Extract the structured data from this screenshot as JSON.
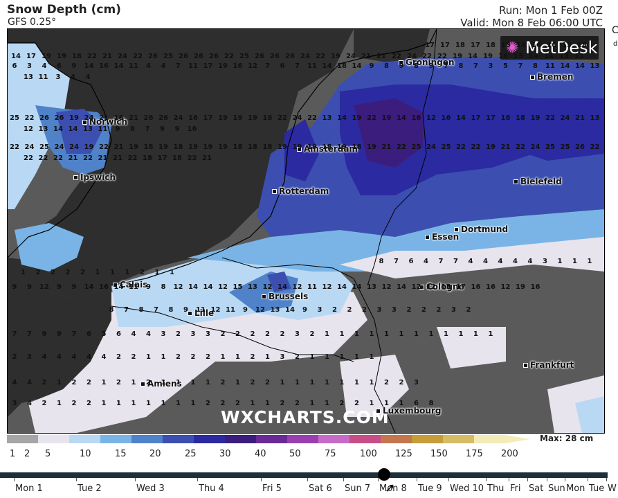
{
  "header": {
    "title": "Snow Depth (cm)",
    "model": "GFS 0.25°",
    "run": "Run: Mon 1 Feb 00Z",
    "valid": "Valid: Mon 8 Feb 06:00 UTC",
    "edge_mark": "C",
    "edge_mark2": "d"
  },
  "brand": {
    "name": "MetDesk",
    "watermark": "WXCHARTS.COM"
  },
  "cities": [
    {
      "name": "Groningen"
    },
    {
      "name": "Bremen"
    },
    {
      "name": "Norwich"
    },
    {
      "name": "Amsterdam"
    },
    {
      "name": "Ipswich"
    },
    {
      "name": "Rotterdam"
    },
    {
      "name": "Bielefeld"
    },
    {
      "name": "Dortmund"
    },
    {
      "name": "Essen"
    },
    {
      "name": "Calais"
    },
    {
      "name": "Brussels"
    },
    {
      "name": "Cologne"
    },
    {
      "name": "Lille"
    },
    {
      "name": "Frankfurt"
    },
    {
      "name": "Amiens"
    },
    {
      "name": "Luxembourg"
    }
  ],
  "grid_values": [
    [
      "17",
      "17",
      "18",
      "17",
      "18",
      "15",
      "14",
      "16",
      "16",
      "15",
      "18",
      "14",
      "17",
      "19",
      "19",
      "18",
      "22",
      "21",
      "24",
      "22",
      "26",
      "25",
      "26",
      "26",
      "26",
      "22",
      "25",
      "26",
      "26",
      "26",
      "24",
      "22",
      "19",
      "24",
      "21",
      "21",
      "22",
      "24",
      "22",
      "22",
      "19",
      "14",
      "19",
      "16",
      "13",
      "14",
      "14",
      "13",
      "11"
    ],
    [
      "6",
      "3",
      "4",
      "6",
      "9",
      "14",
      "16",
      "14",
      "11",
      "4",
      "4",
      "7",
      "11",
      "17",
      "19",
      "16",
      "12",
      "7",
      "6",
      "7",
      "11",
      "14",
      "18",
      "14",
      "9",
      "8",
      "9",
      "8",
      "9",
      "7",
      "8",
      "7",
      "3",
      "5",
      "7",
      "8",
      "11",
      "14",
      "14",
      "13",
      "13",
      "11",
      "3",
      "4",
      "4"
    ],
    [
      "25",
      "22",
      "26",
      "26",
      "19",
      "24",
      "21",
      "18",
      "21",
      "26",
      "26",
      "24",
      "16",
      "17",
      "19",
      "19",
      "19",
      "18",
      "22",
      "24",
      "22",
      "13",
      "14",
      "19",
      "22",
      "19",
      "14",
      "16",
      "12",
      "16",
      "14",
      "17",
      "17",
      "18",
      "18",
      "19",
      "22",
      "24",
      "21",
      "13",
      "12",
      "13",
      "14",
      "14",
      "13",
      "11",
      "9",
      "8",
      "7",
      "9",
      "9",
      "16"
    ],
    [
      "22",
      "24",
      "25",
      "24",
      "24",
      "19",
      "22",
      "21",
      "19",
      "18",
      "19",
      "18",
      "19",
      "19",
      "19",
      "18",
      "18",
      "18",
      "19",
      "19",
      "19",
      "18",
      "19",
      "18",
      "19",
      "21",
      "22",
      "25",
      "24",
      "25",
      "22",
      "22",
      "19",
      "21",
      "22",
      "24",
      "25",
      "25",
      "26",
      "22",
      "22",
      "22",
      "22",
      "21",
      "22",
      "21",
      "21",
      "22",
      "18",
      "17",
      "18",
      "22",
      "21"
    ],
    [
      "8",
      "7",
      "6",
      "4",
      "7",
      "7",
      "4",
      "4",
      "4",
      "4",
      "4",
      "3",
      "1",
      "1",
      "1",
      "1",
      "2",
      "2",
      "2",
      "2",
      "1",
      "1",
      "1",
      "2",
      "1",
      "1"
    ],
    [
      "9",
      "9",
      "12",
      "9",
      "9",
      "14",
      "16",
      "14",
      "11",
      "9",
      "8",
      "12",
      "14",
      "14",
      "12",
      "15",
      "13",
      "12",
      "14",
      "12",
      "11",
      "12",
      "14",
      "14",
      "13",
      "12",
      "14",
      "12",
      "12",
      "15",
      "17",
      "16",
      "16",
      "12",
      "19",
      "16"
    ],
    [
      "8",
      "7",
      "8",
      "7",
      "8",
      "9",
      "11",
      "12",
      "11",
      "9",
      "12",
      "13",
      "14",
      "9",
      "3",
      "2",
      "2",
      "2",
      "3",
      "3",
      "2",
      "2",
      "2",
      "3",
      "2"
    ],
    [
      "7",
      "7",
      "9",
      "9",
      "7",
      "6",
      "5",
      "6",
      "4",
      "4",
      "3",
      "2",
      "3",
      "3",
      "2",
      "2",
      "2",
      "2",
      "2",
      "3",
      "2",
      "1",
      "1",
      "1",
      "1",
      "1",
      "1",
      "1",
      "1",
      "1",
      "1",
      "1",
      "1"
    ],
    [
      "2",
      "3",
      "4",
      "4",
      "4",
      "4",
      "4",
      "2",
      "2",
      "1",
      "1",
      "2",
      "2",
      "2",
      "1",
      "1",
      "2",
      "1",
      "3",
      "2",
      "1",
      "1",
      "1",
      "1",
      "1"
    ],
    [
      "4",
      "4",
      "2",
      "1",
      "2",
      "2",
      "1",
      "2",
      "1",
      "2",
      "1",
      "1",
      "1",
      "1",
      "2",
      "1",
      "2",
      "2",
      "1",
      "1",
      "1",
      "1",
      "1",
      "1",
      "1",
      "2",
      "2",
      "3"
    ],
    [
      "3",
      "4",
      "2",
      "1",
      "2",
      "2",
      "1",
      "1",
      "1",
      "1",
      "1",
      "1",
      "1",
      "2",
      "2",
      "2",
      "1",
      "1",
      "2",
      "2",
      "1",
      "1",
      "2",
      "2",
      "1",
      "1",
      "1",
      "6",
      "8"
    ]
  ],
  "colorbar": {
    "ticks": [
      "1",
      "2",
      "5",
      "10",
      "15",
      "20",
      "25",
      "30",
      "40",
      "50",
      "75",
      "100",
      "125",
      "150",
      "175",
      "200"
    ],
    "colors": [
      "#a6a6a6",
      "#e8e4ee",
      "#b9d8f3",
      "#7ab4e6",
      "#4f82c8",
      "#3c4fb0",
      "#2b2aa0",
      "#3b1d7e",
      "#6a2a98",
      "#9a3fb0",
      "#c76bc8",
      "#c64f88",
      "#c4764e",
      "#c79d3a",
      "#d6bd63",
      "#f5ebb9"
    ],
    "max_label": "Max: 28 cm"
  },
  "timeline": {
    "days": [
      "Mon 1",
      "Tue 2",
      "Wed 3",
      "Thu 4",
      "Fri 5",
      "Sat 6",
      "Sun 7",
      "Mon 8",
      "Tue 9",
      "Wed 10",
      "Thu",
      "Fri",
      "Sat",
      "Sun",
      "Mon",
      "Tue",
      "W"
    ],
    "selected": "Mon 8"
  }
}
